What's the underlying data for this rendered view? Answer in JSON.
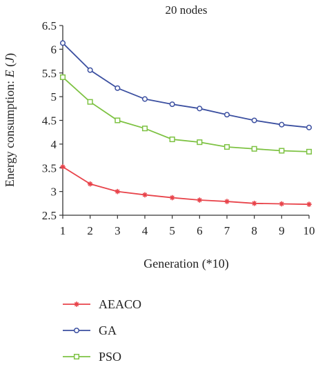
{
  "chart_data": {
    "type": "line",
    "title": "20 nodes",
    "xlabel": "Generation (*10)",
    "ylabel": "Energy consumption: ",
    "ylabel_italic": "E",
    "ylabel_unit_open": " (",
    "ylabel_unit": "J",
    "ylabel_unit_close": ")",
    "x": [
      1,
      2,
      3,
      4,
      5,
      6,
      7,
      8,
      9,
      10
    ],
    "xlim": [
      1,
      10
    ],
    "ylim": [
      2.5,
      6.5
    ],
    "yticks": [
      "2.5",
      "3",
      "3.5",
      "4",
      "4.5",
      "5",
      "5.5",
      "6",
      "6.5"
    ],
    "xticks": [
      "1",
      "2",
      "3",
      "4",
      "5",
      "6",
      "7",
      "8",
      "9",
      "10"
    ],
    "grid": false,
    "legend_position": "bottom-left",
    "series": [
      {
        "name": "AEACO",
        "color": "#e8434a",
        "marker": "star",
        "values": [
          3.52,
          3.16,
          3.0,
          2.93,
          2.87,
          2.82,
          2.79,
          2.75,
          2.74,
          2.73
        ]
      },
      {
        "name": "GA",
        "color": "#3b4fa0",
        "marker": "circle",
        "values": [
          6.13,
          5.56,
          5.18,
          4.95,
          4.84,
          4.75,
          4.62,
          4.5,
          4.41,
          4.35
        ]
      },
      {
        "name": "PSO",
        "color": "#7dc242",
        "marker": "square",
        "values": [
          5.41,
          4.89,
          4.5,
          4.33,
          4.1,
          4.04,
          3.94,
          3.9,
          3.86,
          3.84
        ]
      }
    ]
  }
}
